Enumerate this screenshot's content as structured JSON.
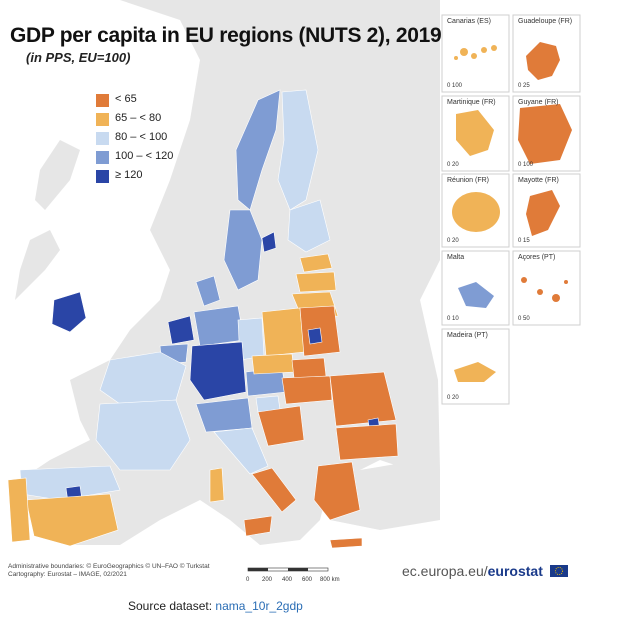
{
  "title": "GDP per capita in EU regions (NUTS 2), 2019",
  "subtitle": "(in PPS, EU=100)",
  "legend": [
    {
      "label": "< 65",
      "color": "#e07b39"
    },
    {
      "label": "65 – < 80",
      "color": "#f0b357"
    },
    {
      "label": "80 – < 100",
      "color": "#c8daf0"
    },
    {
      "label": "100 – < 120",
      "color": "#7f9cd3"
    },
    {
      "label": "≥ 120",
      "color": "#2a45a6"
    }
  ],
  "insets": [
    {
      "name": "Canarias (ES)",
      "scale": "0 100",
      "class": "65 – < 80"
    },
    {
      "name": "Guadeloupe (FR)",
      "scale": "0 25",
      "class": "< 65"
    },
    {
      "name": "Martinique (FR)",
      "scale": "0 20",
      "class": "65 – < 80"
    },
    {
      "name": "Guyane (FR)",
      "scale": "0 100",
      "class": "< 65"
    },
    {
      "name": "Réunion (FR)",
      "scale": "0 20",
      "class": "65 – < 80"
    },
    {
      "name": "Mayotte (FR)",
      "scale": "0 15",
      "class": "< 65"
    },
    {
      "name": "Malta",
      "scale": "0 10",
      "class": "100 – < 120"
    },
    {
      "name": "Açores (PT)",
      "scale": "0 50",
      "class": "< 65"
    },
    {
      "name": "Madeira (PT)",
      "scale": "0 20",
      "class": "65 – < 80"
    }
  ],
  "credits": {
    "line1": "Administrative boundaries: © EuroGeographics © UN–FAO © Turkstat",
    "line2": "Cartography: Eurostat – IMAGE, 02/2021"
  },
  "scalebar": {
    "labels": [
      "0",
      "200",
      "400",
      "600",
      "800 km"
    ]
  },
  "brand": {
    "prefix": "ec.europa.eu/",
    "name": "eurostat"
  },
  "source": {
    "label": "Source dataset:",
    "link": "nama_10r_2gdp"
  },
  "colors": {
    "sea": "#ffffff",
    "non_eu_land": "#e6e6e6",
    "border": "#ffffff"
  }
}
